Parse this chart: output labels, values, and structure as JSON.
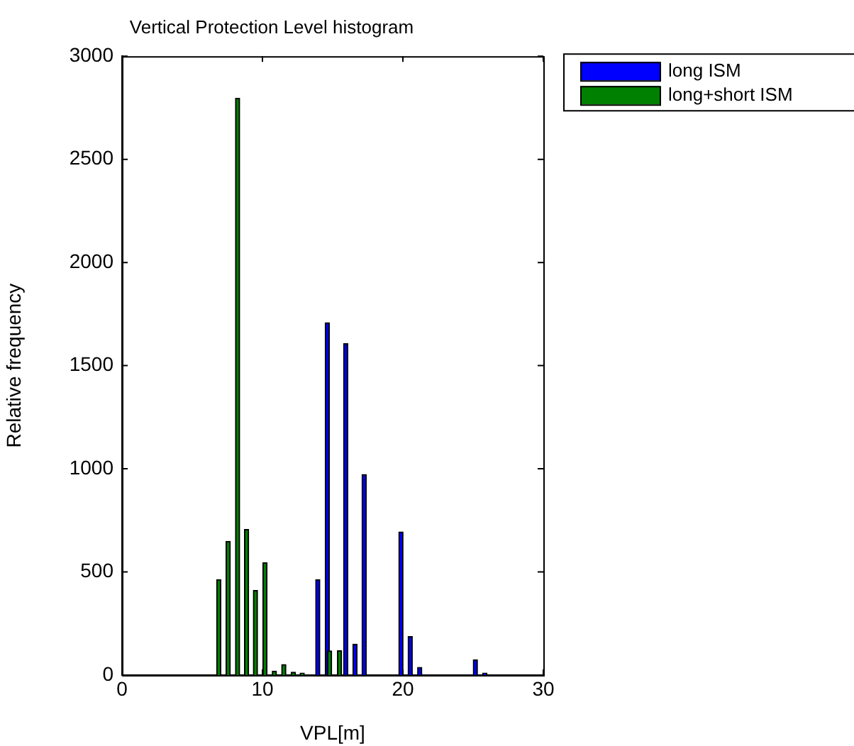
{
  "chart_data": {
    "type": "bar",
    "title": "Vertical Protection Level histogram",
    "xlabel": "VPL[m]",
    "ylabel": "Relative frequency",
    "xlim": [
      0,
      30
    ],
    "xticks": [
      0,
      10,
      20,
      30
    ],
    "ylim": [
      0,
      3000
    ],
    "yticks": [
      0,
      500,
      1000,
      1500,
      2000,
      2500,
      3000
    ],
    "grid": false,
    "legend": "top right",
    "series": [
      {
        "name": "long ISM",
        "color": "#0000ff",
        "x": [
          13.94,
          14.62,
          15.93,
          16.59,
          17.24,
          19.86,
          20.52,
          21.2,
          25.16,
          25.84
        ],
        "values": [
          463,
          1708,
          1606,
          150,
          972,
          694,
          187,
          37,
          74,
          10
        ]
      },
      {
        "name": "long+short ISM",
        "color": "#008000",
        "x": [
          6.89,
          7.56,
          8.23,
          8.87,
          9.5,
          10.18,
          10.85,
          11.52,
          12.2,
          12.83,
          14.78,
          15.49
        ],
        "values": [
          463,
          648,
          2796,
          706,
          410,
          544,
          19,
          51,
          14,
          10,
          117,
          118
        ]
      }
    ]
  }
}
